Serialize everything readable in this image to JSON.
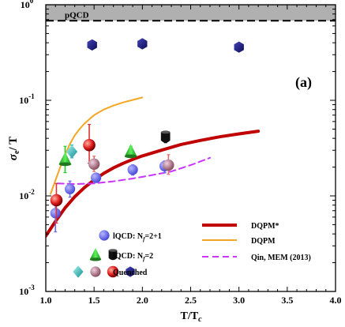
{
  "chart_data": {
    "type": "scatter",
    "xlabel_main": "T/T",
    "xlabel_sub": "c",
    "ylabel_main": "σ",
    "ylabel_sub": "e",
    "ylabel_tail": "/ T",
    "panel_label": "(a)",
    "xlim": [
      1.0,
      4.0
    ],
    "ylim": [
      0.001,
      1.0
    ],
    "ylog": true,
    "x_ticks": [
      {
        "v": 1.0,
        "label": "1.0"
      },
      {
        "v": 1.5,
        "label": "1.5"
      },
      {
        "v": 2.0,
        "label": "2.0"
      },
      {
        "v": 2.5,
        "label": "2.5"
      },
      {
        "v": 3.0,
        "label": "3.0"
      },
      {
        "v": 3.5,
        "label": "3.5"
      },
      {
        "v": 4.0,
        "label": "4.0"
      }
    ],
    "y_ticks": [
      {
        "v": 0.001,
        "base": "10",
        "exp": "-3"
      },
      {
        "v": 0.01,
        "base": "10",
        "exp": "-2"
      },
      {
        "v": 0.1,
        "base": "10",
        "exp": "-1"
      },
      {
        "v": 1.0,
        "base": "10",
        "exp": "0"
      }
    ],
    "pqcd": {
      "label": "pQCD",
      "y_low": 0.68,
      "y_high": 1.0,
      "color": "#b0b0b0"
    },
    "lines": [
      {
        "name": "DQPM*",
        "color": "#c00000",
        "width": 4,
        "dash": "",
        "x": [
          1.0,
          1.1,
          1.2,
          1.3,
          1.4,
          1.5,
          1.6,
          1.7,
          1.8,
          1.9,
          2.0,
          2.2,
          2.4,
          2.6,
          2.8,
          3.0,
          3.2
        ],
        "y": [
          0.0038,
          0.0054,
          0.0075,
          0.0098,
          0.0122,
          0.0147,
          0.0172,
          0.0196,
          0.0219,
          0.0241,
          0.0262,
          0.0301,
          0.0345,
          0.038,
          0.0415,
          0.0445,
          0.0475
        ]
      },
      {
        "name": "DQPM",
        "color": "#f5a623",
        "width": 2,
        "dash": "",
        "x": [
          1.05,
          1.1,
          1.15,
          1.2,
          1.25,
          1.3,
          1.35,
          1.4,
          1.5,
          1.6,
          1.7,
          1.8,
          1.9,
          2.0
        ],
        "y": [
          0.0105,
          0.0145,
          0.02,
          0.027,
          0.035,
          0.043,
          0.05,
          0.057,
          0.07,
          0.08,
          0.088,
          0.095,
          0.101,
          0.107
        ]
      },
      {
        "name": "Qin, MEM (2013)",
        "color": "#cc33ff",
        "width": 2,
        "dash": "8,5",
        "x": [
          1.12,
          1.3,
          1.5,
          1.7,
          1.9,
          2.1,
          2.3,
          2.5,
          2.7
        ],
        "y": [
          0.0135,
          0.0133,
          0.0135,
          0.0142,
          0.0152,
          0.0165,
          0.018,
          0.021,
          0.025
        ]
      }
    ],
    "points_lqcd_2p1": {
      "name": "lQCD: N_f=2+1",
      "color": "#6a6cf0",
      "x": [
        1.1,
        1.25,
        1.52,
        1.9,
        2.23
      ],
      "y": [
        0.0066,
        0.0118,
        0.0155,
        0.0188,
        0.0205
      ],
      "err_low": [
        0.0042,
        0.0097,
        0.0138,
        0.0165,
        0.0175
      ],
      "err_high": [
        0.0095,
        0.0143,
        0.0172,
        0.0212,
        0.0232
      ]
    },
    "points_lqcd_2": [
      {
        "shape": "cone",
        "x": 1.2,
        "y": 0.024,
        "err_low": 0.0175,
        "err_high": 0.033,
        "color": "#2fc52f",
        "err_color": "#22cc22"
      },
      {
        "shape": "cone",
        "x": 1.88,
        "y": 0.029,
        "err_low": 0.026,
        "err_high": 0.033,
        "color": "#3db43d",
        "err_color": "#22cc22"
      },
      {
        "shape": "cup",
        "x": 2.24,
        "y": 0.041,
        "err_low": 0.036,
        "err_high": 0.047,
        "color": "#111111",
        "err_color": "#111111"
      }
    ],
    "points_quenched": [
      {
        "shape": "gem",
        "x": 1.27,
        "y": 0.029,
        "err_low": 0.025,
        "err_high": 0.034,
        "color": "#2cc3c3",
        "err_color": "#11c1d1"
      },
      {
        "shape": "ball",
        "x": 1.11,
        "y": 0.009,
        "err_low": 0.0052,
        "err_high": 0.0135,
        "color": "#e02020",
        "err_color": "#dd3333"
      },
      {
        "shape": "ball",
        "x": 1.45,
        "y": 0.034,
        "err_low": 0.022,
        "err_high": 0.056,
        "color": "#e02020",
        "err_color": "#dd3333"
      },
      {
        "shape": "pinkball",
        "x": 1.5,
        "y": 0.0215,
        "err_low": 0.018,
        "err_high": 0.026,
        "color": "#b07080",
        "err_color": "#e07070"
      },
      {
        "shape": "pinkball",
        "x": 2.27,
        "y": 0.021,
        "err_low": 0.0168,
        "err_high": 0.027,
        "color": "#b07080",
        "err_color": "#e07070"
      },
      {
        "shape": "hex",
        "x": 1.48,
        "y": 0.38,
        "err_low": 0.36,
        "err_high": 0.4,
        "color": "#1a1a8c",
        "err_color": "#1a1a8c"
      },
      {
        "shape": "hex",
        "x": 2.0,
        "y": 0.39,
        "err_low": 0.375,
        "err_high": 0.405,
        "color": "#1a1a8c",
        "err_color": "#1a1a8c"
      },
      {
        "shape": "hex",
        "x": 3.0,
        "y": 0.36,
        "err_low": 0.35,
        "err_high": 0.375,
        "color": "#1a1a8c",
        "err_color": "#1a1a8c"
      }
    ],
    "legend": {
      "left": [
        {
          "label": "lQCD: N",
          "sub": "f",
          "tail": "=2+1",
          "symbols": [
            "blue-dot"
          ]
        },
        {
          "label": "lQCD: N",
          "sub": "f",
          "tail": "=2",
          "symbols": [
            "green-cone",
            "black-cup"
          ]
        },
        {
          "label": "Quenched",
          "sub": "",
          "tail": "",
          "symbols": [
            "cyan-gem",
            "pink-ball",
            "red-ball",
            "navy-hex"
          ]
        }
      ],
      "right": [
        {
          "label": "DQPM*",
          "line": "#c00000",
          "width": 4,
          "dash": ""
        },
        {
          "label": "DQPM",
          "line": "#f5a623",
          "width": 2,
          "dash": ""
        },
        {
          "label": "Qin, MEM (2013)",
          "line": "#cc33ff",
          "width": 2,
          "dash": "8,5"
        }
      ]
    }
  }
}
